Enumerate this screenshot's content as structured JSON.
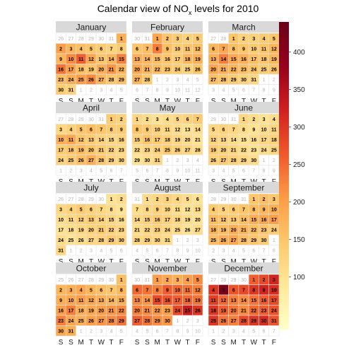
{
  "chart_data": {
    "type": "heatmap",
    "title_prefix": "Calendar view of NO",
    "title_sub": "x",
    "title_suffix": " levels for  2010",
    "year": 2010,
    "weekday_labels": [
      "S",
      "S",
      "M",
      "T",
      "W",
      "T",
      "F"
    ],
    "colorbar": {
      "min": 30,
      "max": 440,
      "ticks": [
        100,
        150,
        200,
        250,
        300,
        350,
        400
      ],
      "colors": [
        "#FFFFC8",
        "#FFE99A",
        "#FEC86A",
        "#FD9B44",
        "#F0582A",
        "#D1201F",
        "#96001C",
        "#6B0018"
      ]
    },
    "months": [
      {
        "name": "January",
        "first_col": 6,
        "days": 31,
        "prev_days": 31,
        "values": [
          180,
          200,
          170,
          160,
          150,
          140,
          130,
          140,
          170,
          220,
          260,
          190,
          150,
          170,
          230,
          240,
          200,
          160,
          150,
          180,
          210,
          170,
          160,
          180,
          200,
          220,
          170,
          150,
          160,
          140,
          130
        ]
      },
      {
        "name": "February",
        "first_col": 2,
        "days": 28,
        "prev_days": 31,
        "values": [
          190,
          150,
          140,
          130,
          140,
          150,
          160,
          230,
          160,
          140,
          150,
          160,
          180,
          170,
          160,
          150,
          140,
          170,
          180,
          190,
          170,
          160,
          150,
          140,
          130,
          150,
          170,
          140
        ]
      },
      {
        "name": "March",
        "first_col": 2,
        "days": 31,
        "prev_days": 28,
        "values": [
          150,
          130,
          130,
          140,
          150,
          170,
          190,
          160,
          150,
          140,
          150,
          170,
          180,
          230,
          190,
          180,
          160,
          150,
          170,
          190,
          180,
          170,
          160,
          150,
          140,
          150,
          160,
          150,
          140,
          130,
          120
        ]
      },
      {
        "name": "April",
        "first_col": 5,
        "days": 30,
        "prev_days": 31,
        "values": [
          140,
          130,
          120,
          130,
          150,
          160,
          150,
          140,
          140,
          180,
          190,
          150,
          140,
          130,
          120,
          130,
          140,
          150,
          160,
          150,
          140,
          130,
          120,
          130,
          140,
          160,
          180,
          150,
          130,
          120
        ]
      },
      {
        "name": "May",
        "first_col": 0,
        "days": 31,
        "prev_days": 30,
        "values": [
          120,
          110,
          100,
          110,
          120,
          130,
          140,
          150,
          140,
          130,
          120,
          110,
          100,
          110,
          130,
          150,
          140,
          130,
          120,
          110,
          100,
          110,
          120,
          130,
          140,
          130,
          120,
          110,
          100,
          110,
          120
        ]
      },
      {
        "name": "June",
        "first_col": 3,
        "days": 30,
        "prev_days": 31,
        "values": [
          120,
          110,
          100,
          110,
          120,
          130,
          120,
          110,
          100,
          110,
          120,
          130,
          120,
          110,
          100,
          110,
          120,
          130,
          140,
          130,
          120,
          110,
          100,
          110,
          120,
          130,
          140,
          130,
          120,
          110
        ]
      },
      {
        "name": "July",
        "first_col": 5,
        "days": 31,
        "prev_days": 30,
        "values": [
          100,
          110,
          120,
          130,
          140,
          130,
          120,
          110,
          100,
          110,
          120,
          130,
          140,
          130,
          120,
          110,
          100,
          110,
          120,
          130,
          140,
          130,
          120,
          110,
          100,
          110,
          120,
          130,
          140,
          130,
          120
        ]
      },
      {
        "name": "August",
        "first_col": 1,
        "days": 31,
        "prev_days": 31,
        "values": [
          110,
          120,
          130,
          120,
          110,
          100,
          110,
          120,
          130,
          120,
          110,
          100,
          110,
          120,
          130,
          140,
          130,
          120,
          110,
          100,
          110,
          120,
          130,
          120,
          110,
          100,
          110,
          120,
          130,
          120,
          110
        ]
      },
      {
        "name": "September",
        "first_col": 4,
        "days": 30,
        "prev_days": 31,
        "values": [
          150,
          160,
          150,
          140,
          130,
          140,
          150,
          160,
          170,
          180,
          160,
          150,
          140,
          160,
          180,
          190,
          200,
          170,
          160,
          180,
          170,
          160,
          150,
          140,
          160,
          180,
          190,
          160,
          150,
          140
        ]
      },
      {
        "name": "October",
        "first_col": 6,
        "days": 31,
        "prev_days": 30,
        "values": [
          160,
          170,
          180,
          190,
          170,
          160,
          150,
          170,
          180,
          190,
          200,
          190,
          180,
          170,
          180,
          200,
          230,
          180,
          190,
          200,
          210,
          220,
          230,
          190,
          180,
          200,
          210,
          220,
          240,
          190,
          180
        ]
      },
      {
        "name": "November",
        "first_col": 2,
        "days": 30,
        "prev_days": 31,
        "values": [
          200,
          190,
          180,
          200,
          220,
          250,
          240,
          230,
          260,
          250,
          240,
          230,
          220,
          210,
          280,
          270,
          260,
          250,
          240,
          230,
          220,
          210,
          200,
          280,
          330,
          300,
          260,
          240,
          220,
          210
        ]
      },
      {
        "name": "December",
        "first_col": 4,
        "days": 31,
        "prev_days": 30,
        "values": [
          260,
          280,
          320,
          300,
          420,
          270,
          280,
          300,
          320,
          310,
          290,
          250,
          230,
          220,
          240,
          260,
          280,
          300,
          260,
          240,
          220,
          250,
          260,
          270,
          300,
          240,
          230,
          280,
          300,
          310,
          270
        ]
      }
    ]
  }
}
